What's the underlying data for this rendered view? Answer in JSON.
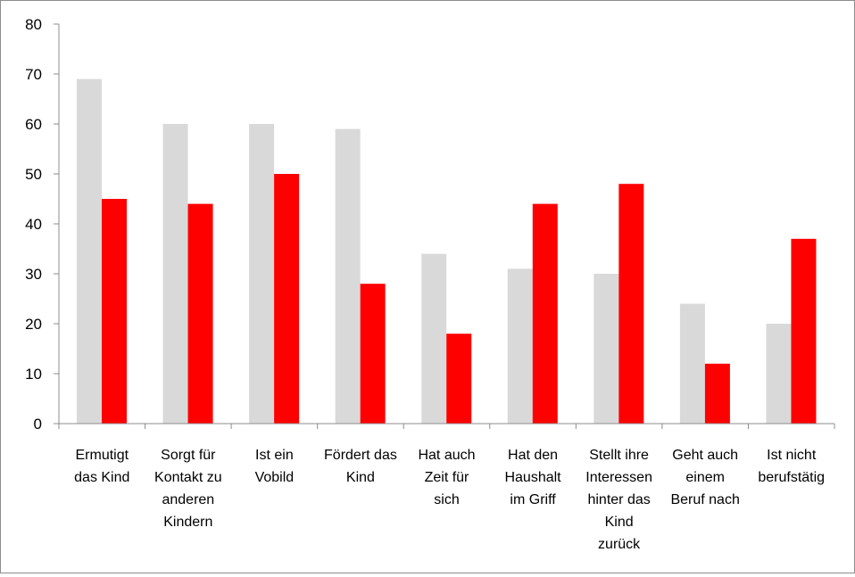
{
  "chart_data": {
    "type": "bar",
    "title": "",
    "xlabel": "",
    "ylabel": "",
    "ylim": [
      0,
      80
    ],
    "yticks": [
      0,
      10,
      20,
      30,
      40,
      50,
      60,
      70,
      80
    ],
    "grid": false,
    "legend": "none",
    "categories": [
      "Ermutigt das Kind",
      "Sorgt für Kontakt zu anderen Kindern",
      "Ist ein Vobild",
      "Fördert das Kind",
      "Hat auch Zeit für sich",
      "Hat den Haushalt im Griff",
      "Stellt ihre Interessen hinter das Kind zurück",
      "Geht auch einem Beruf nach",
      "Ist nicht berufstätig"
    ],
    "category_lines": [
      [
        "Ermutigt",
        "das Kind"
      ],
      [
        "Sorgt für",
        "Kontakt zu",
        "anderen",
        "Kindern"
      ],
      [
        "Ist ein",
        "Vobild"
      ],
      [
        "Fördert das",
        "Kind"
      ],
      [
        "Hat auch",
        "Zeit für",
        "sich"
      ],
      [
        "Hat den",
        "Haushalt",
        "im Griff"
      ],
      [
        "Stellt ihre",
        "Interessen",
        "hinter das",
        "Kind",
        "zurück"
      ],
      [
        "Geht auch",
        "einem",
        "Beruf nach"
      ],
      [
        "Ist nicht",
        "berufstätig"
      ]
    ],
    "series": [
      {
        "color": "#d9d9d9",
        "values": [
          69,
          60,
          60,
          59,
          34,
          31,
          30,
          24,
          20
        ]
      },
      {
        "color": "#ff0000",
        "values": [
          45,
          44,
          50,
          28,
          18,
          44,
          48,
          12,
          37
        ]
      }
    ]
  }
}
